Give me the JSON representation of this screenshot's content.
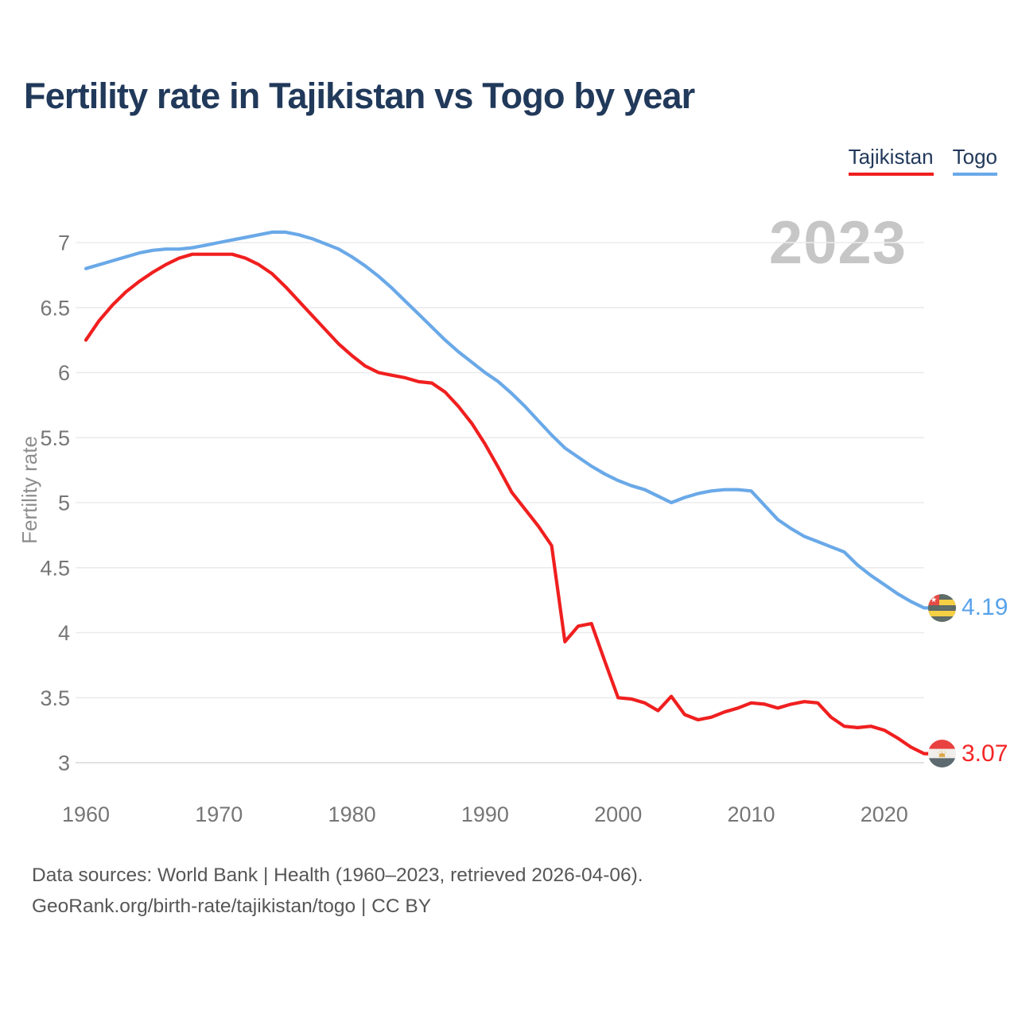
{
  "title": "Fertility rate in Tajikistan vs Togo by year",
  "watermark": "2023",
  "legend": [
    {
      "label": "Tajikistan",
      "color": "#f01f1f"
    },
    {
      "label": "Togo",
      "color": "#6aa9e8"
    }
  ],
  "end_labels": [
    {
      "series": "Togo",
      "value": "4.19",
      "flag": "togo-flag-icon",
      "color": "#58a2ea"
    },
    {
      "series": "Tajikistan",
      "value": "3.07",
      "flag": "tajikistan-flag-icon",
      "color": "#f42525"
    }
  ],
  "footer": {
    "line1": "Data sources: World Bank | Health (1960–2023, retrieved 2026-04-06).",
    "line2": "GeoRank.org/birth-rate/tajikistan/togo | CC BY"
  },
  "chart_data": {
    "type": "line",
    "title": "Fertility rate in Tajikistan vs Togo by year",
    "xlabel": "",
    "ylabel": "Fertility rate",
    "ylim": [
      3,
      7
    ],
    "xlim": [
      1960,
      2023
    ],
    "y_ticks": [
      3,
      3.5,
      4,
      4.5,
      5,
      5.5,
      6,
      6.5,
      7
    ],
    "x_ticks": [
      1960,
      1970,
      1980,
      1990,
      2000,
      2010,
      2020
    ],
    "grid": "horizontal",
    "legend_position": "top-right",
    "x": [
      1960,
      1961,
      1962,
      1963,
      1964,
      1965,
      1966,
      1967,
      1968,
      1969,
      1970,
      1971,
      1972,
      1973,
      1974,
      1975,
      1976,
      1977,
      1978,
      1979,
      1980,
      1981,
      1982,
      1983,
      1984,
      1985,
      1986,
      1987,
      1988,
      1989,
      1990,
      1991,
      1992,
      1993,
      1994,
      1995,
      1996,
      1997,
      1998,
      1999,
      2000,
      2001,
      2002,
      2003,
      2004,
      2005,
      2006,
      2007,
      2008,
      2009,
      2010,
      2011,
      2012,
      2013,
      2014,
      2015,
      2016,
      2017,
      2018,
      2019,
      2020,
      2021,
      2022,
      2023
    ],
    "series": [
      {
        "name": "Togo",
        "color": "#6aa9e8",
        "end_value": 4.19,
        "values": [
          6.8,
          6.83,
          6.86,
          6.89,
          6.92,
          6.94,
          6.95,
          6.95,
          6.96,
          6.98,
          7.0,
          7.02,
          7.04,
          7.06,
          7.08,
          7.08,
          7.06,
          7.03,
          6.99,
          6.95,
          6.89,
          6.82,
          6.74,
          6.65,
          6.55,
          6.45,
          6.35,
          6.25,
          6.16,
          6.08,
          6.0,
          5.93,
          5.84,
          5.74,
          5.63,
          5.52,
          5.42,
          5.35,
          5.28,
          5.22,
          5.17,
          5.13,
          5.1,
          5.05,
          5.0,
          5.04,
          5.07,
          5.09,
          5.1,
          5.1,
          5.09,
          4.98,
          4.87,
          4.8,
          4.74,
          4.7,
          4.66,
          4.62,
          4.52,
          4.44,
          4.37,
          4.3,
          4.24,
          4.19
        ]
      },
      {
        "name": "Tajikistan",
        "color": "#f01f1f",
        "end_value": 3.07,
        "values": [
          6.25,
          6.4,
          6.52,
          6.62,
          6.7,
          6.77,
          6.83,
          6.88,
          6.91,
          6.91,
          6.91,
          6.91,
          6.88,
          6.83,
          6.76,
          6.66,
          6.55,
          6.44,
          6.33,
          6.22,
          6.13,
          6.05,
          6.0,
          5.98,
          5.96,
          5.93,
          5.92,
          5.85,
          5.74,
          5.61,
          5.45,
          5.27,
          5.08,
          4.95,
          4.82,
          4.67,
          3.93,
          4.05,
          4.07,
          3.78,
          3.5,
          3.49,
          3.46,
          3.4,
          3.51,
          3.37,
          3.33,
          3.35,
          3.39,
          3.42,
          3.46,
          3.45,
          3.42,
          3.45,
          3.47,
          3.46,
          3.35,
          3.28,
          3.27,
          3.28,
          3.25,
          3.19,
          3.12,
          3.07
        ]
      }
    ]
  }
}
